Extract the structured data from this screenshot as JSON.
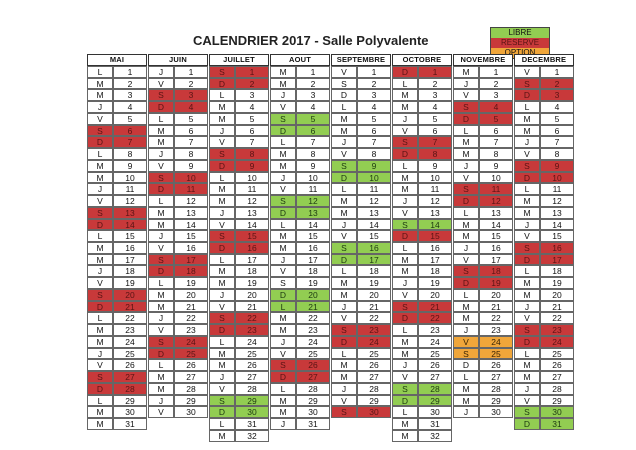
{
  "title": "CALENDRIER 2017 - Salle Polyvalente",
  "legend": {
    "libre": "LIBRE",
    "reserve": "RESERVE",
    "option": "OPTION"
  },
  "colors": {
    "reserve": "#c8393a",
    "libre": "#92cd52",
    "option": "#f0a63a"
  },
  "months": [
    {
      "name": "MAI",
      "letters": "LMMJVSDLMMJVSDLMMJVSDLMMJVSDLMM",
      "status": "BBBBBRRBBBBBRRBBBBBRRBBBBBRRBBB"
    },
    {
      "name": "JUIN",
      "letters": "JVSDLMMJVSDLMMJVSDLMMJVSDLMMJV",
      "status": "BBRRBBBBBRRBBBBBRRBBBBBRRBBBBB"
    },
    {
      "name": "JUILLET",
      "letters": "SDLMMJVSDLMMJVSDLMMJVSDLMMJVSDLM",
      "status": "RRBBBBBRRBBBBBRRBBBBBRRBBBBBLLBB"
    },
    {
      "name": "AOUT",
      "letters": "MMJVSDLMMJVSDLMMJVSDLMMJVSDLMMJ",
      "status": "BBBBLLBBBBBLLBBBBBBLLBBBBRRBBBB"
    },
    {
      "name": "SEPTEMBRE",
      "letters": "VSDLMMJVSDLMMJVSDLMMJVSDLMMJVS",
      "status": "BBBBBBBBLLBBBBBLLBBBBBRRBBBBBR"
    },
    {
      "name": "OCTOBRE",
      "letters": "DLMMJVSDLMMJVSDLMMJVSDLMMJVSDLMM",
      "status": "RBBBBBRRBBBBBLRBBBBBRRBBBBBLLBBB"
    },
    {
      "name": "NOVEMBRE",
      "letters": "MJVSDLMMJVSDLMMJVSDLMMJVSDLMMJ",
      "status": "BBBRRBBBBBRRBBBBBRRBBBBOOBBBBB"
    },
    {
      "name": "DECEMBRE",
      "letters": "VSDLMMJVSDLMMJVSDLMMJVSDLMMJVSD",
      "status": "BRRBBBBBRRBBBBBRRBBBBBRRBBBBBLL"
    }
  ]
}
